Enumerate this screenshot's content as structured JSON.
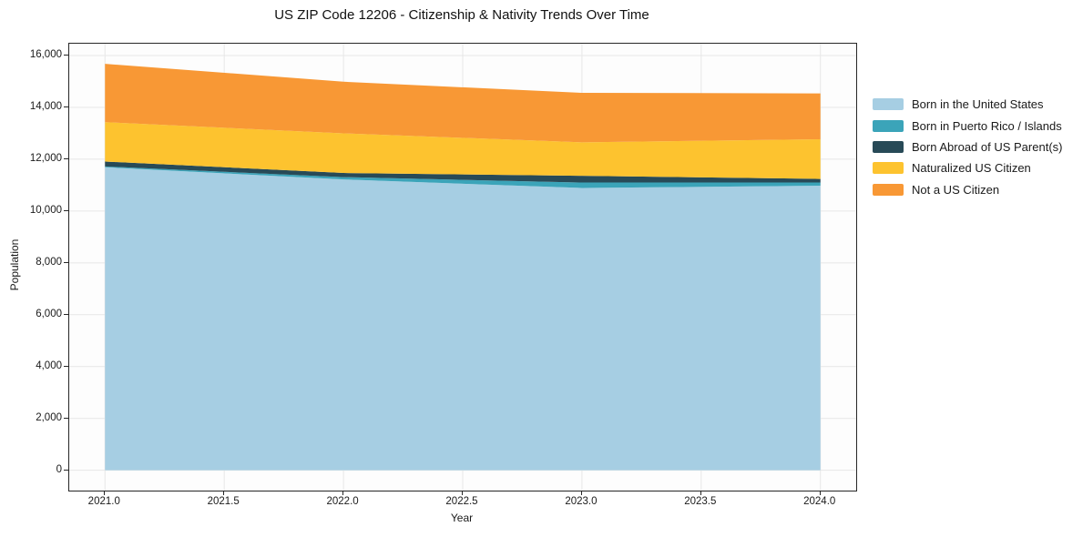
{
  "chart_data": {
    "type": "area",
    "stacked": true,
    "title": "US ZIP Code 12206 - Citizenship & Nativity Trends Over Time",
    "xlabel": "Year",
    "ylabel": "Population",
    "x": [
      2021,
      2022,
      2023,
      2024
    ],
    "series": [
      {
        "name": "Born in the United States",
        "color": "#a6cee3",
        "values": [
          11690,
          11220,
          10890,
          10980
        ]
      },
      {
        "name": "Born in Puerto Rico / Islands",
        "color": "#3ba4b9",
        "values": [
          30,
          90,
          210,
          120
        ]
      },
      {
        "name": "Born Abroad of US Parent(s)",
        "color": "#284a57",
        "values": [
          190,
          160,
          260,
          140
        ]
      },
      {
        "name": "Naturalized US Citizen",
        "color": "#fdc32f",
        "values": [
          1520,
          1530,
          1290,
          1530
        ]
      },
      {
        "name": "Not a US Citizen",
        "color": "#f89835",
        "values": [
          2250,
          1990,
          1910,
          1770
        ]
      }
    ],
    "stack_totals": [
      15680,
      14990,
      14560,
      14540
    ],
    "xlim": [
      2020.85,
      2024.15
    ],
    "ylim": [
      -784,
      16457
    ],
    "grid": true,
    "gridline_color": "#e7e7e7",
    "legend_position": "right of plot, frameless",
    "x_ticks": [
      {
        "value": 2021.0,
        "label": "2021.0"
      },
      {
        "value": 2021.5,
        "label": "2021.5"
      },
      {
        "value": 2022.0,
        "label": "2022.0"
      },
      {
        "value": 2022.5,
        "label": "2022.5"
      },
      {
        "value": 2023.0,
        "label": "2023.0"
      },
      {
        "value": 2023.5,
        "label": "2023.5"
      },
      {
        "value": 2024.0,
        "label": "2024.0"
      }
    ],
    "y_ticks": [
      {
        "value": 0,
        "label": "0"
      },
      {
        "value": 2000,
        "label": "2,000"
      },
      {
        "value": 4000,
        "label": "4,000"
      },
      {
        "value": 6000,
        "label": "6,000"
      },
      {
        "value": 8000,
        "label": "8,000"
      },
      {
        "value": 10000,
        "label": "10,000"
      },
      {
        "value": 12000,
        "label": "12,000"
      },
      {
        "value": 14000,
        "label": "14,000"
      },
      {
        "value": 16000,
        "label": "16,000"
      }
    ]
  }
}
